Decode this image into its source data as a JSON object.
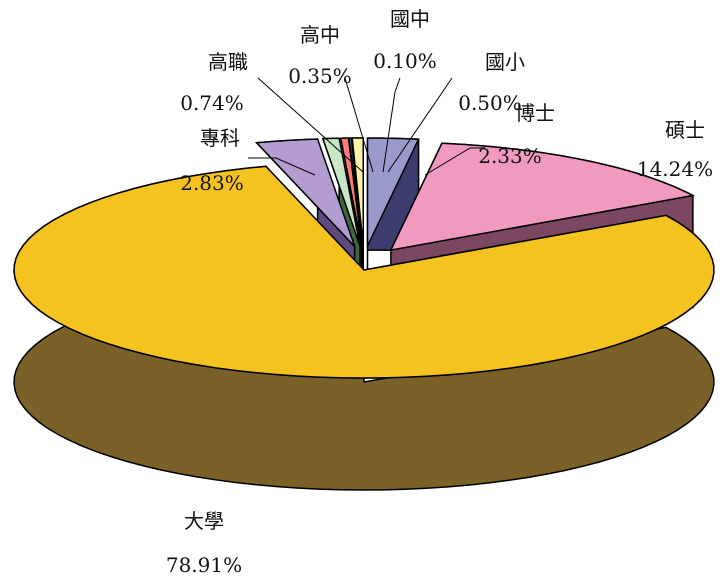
{
  "chart_data": {
    "type": "pie",
    "title": "",
    "legend": "none",
    "style": "exploded-3d",
    "start_angle_deg": 0,
    "slices": [
      {
        "name": "博士",
        "value": 2.33,
        "label": "2.33%",
        "top_color": "#9999cc",
        "side_color": "#3c3c6e",
        "explode": true
      },
      {
        "name": "碩士",
        "value": 14.24,
        "label": "14.24%",
        "top_color": "#f09abf",
        "side_color": "#7a4660",
        "explode": true
      },
      {
        "name": "大學",
        "value": 78.91,
        "label": "78.91%",
        "top_color": "#f5c320",
        "side_color": "#7a6128",
        "explode": false
      },
      {
        "name": "專科",
        "value": 2.83,
        "label": "2.83%",
        "top_color": "#b39cd0",
        "side_color": "#5c4a7e",
        "explode": true
      },
      {
        "name": "高職",
        "value": 0.74,
        "label": "0.74%",
        "top_color": "#c6e8c6",
        "side_color": "#3c6a3c",
        "explode": true
      },
      {
        "name": "高中",
        "value": 0.35,
        "label": "0.35%",
        "top_color": "#ff7a7a",
        "side_color": "#8a2e2e",
        "explode": true
      },
      {
        "name": "國中",
        "value": 0.1,
        "label": "0.10%",
        "top_color": "#3c7ab8",
        "side_color": "#1e3c5c",
        "explode": true
      },
      {
        "name": "國小",
        "value": 0.5,
        "label": "0.50%",
        "top_color": "#fdf3a8",
        "side_color": "#8a8250",
        "explode": true
      }
    ]
  }
}
